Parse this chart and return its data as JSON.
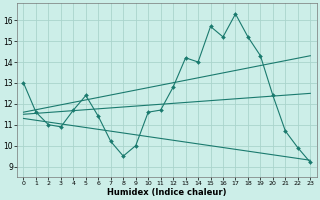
{
  "xlabel": "Humidex (Indice chaleur)",
  "bg_color": "#cceee8",
  "grid_color": "#aad4cc",
  "line_color": "#1a7a6e",
  "x_ticks": [
    0,
    1,
    2,
    3,
    4,
    5,
    6,
    7,
    8,
    9,
    10,
    11,
    12,
    13,
    14,
    15,
    16,
    17,
    18,
    19,
    20,
    21,
    22,
    23
  ],
  "y_ticks": [
    9,
    10,
    11,
    12,
    13,
    14,
    15,
    16
  ],
  "xlim": [
    -0.5,
    23.5
  ],
  "ylim": [
    8.5,
    16.8
  ],
  "line1_x": [
    0,
    1,
    2,
    3,
    4,
    5,
    6,
    7,
    8,
    9,
    10,
    11,
    12,
    13,
    14,
    15,
    16,
    17,
    18,
    19,
    20,
    21,
    22,
    23
  ],
  "line1_y": [
    13.0,
    11.6,
    11.0,
    10.9,
    11.7,
    12.4,
    11.4,
    10.2,
    9.5,
    10.0,
    11.6,
    11.7,
    12.8,
    14.2,
    14.0,
    15.7,
    15.2,
    16.3,
    15.2,
    14.3,
    12.4,
    10.7,
    9.9,
    9.2
  ],
  "line2_x": [
    0,
    23
  ],
  "line2_y": [
    11.6,
    14.3
  ],
  "line3_x": [
    0,
    23
  ],
  "line3_y": [
    11.5,
    12.5
  ],
  "line4_x": [
    0,
    23
  ],
  "line4_y": [
    11.3,
    9.3
  ]
}
